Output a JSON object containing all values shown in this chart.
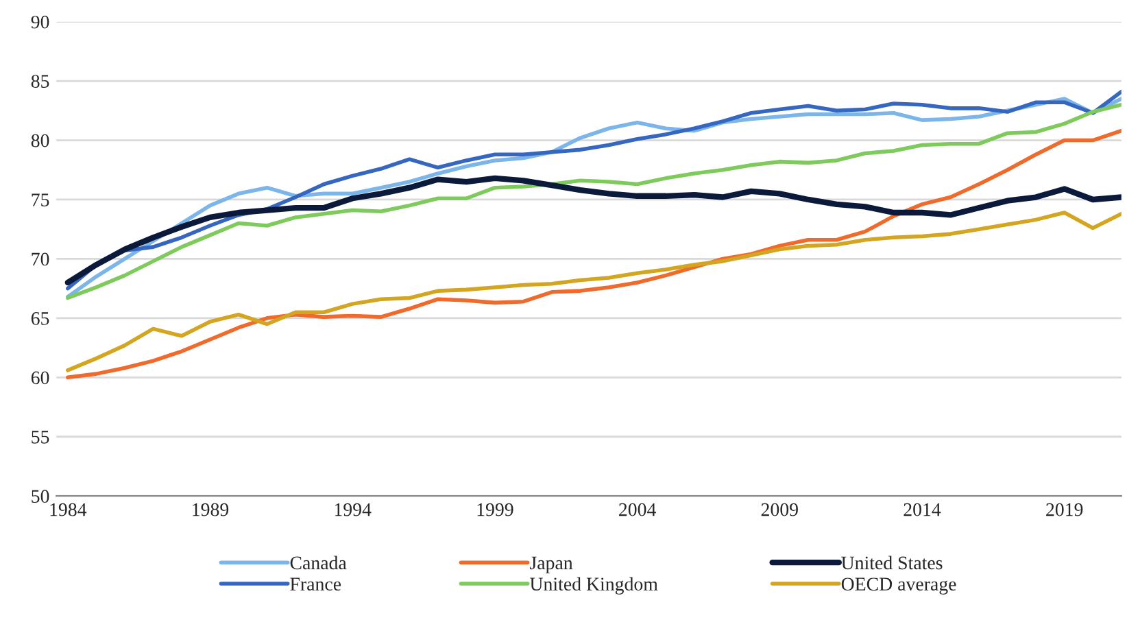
{
  "chart_data": {
    "type": "line",
    "x": [
      1984,
      1985,
      1986,
      1987,
      1988,
      1989,
      1990,
      1991,
      1992,
      1993,
      1994,
      1995,
      1996,
      1997,
      1998,
      1999,
      2000,
      2001,
      2002,
      2003,
      2004,
      2005,
      2006,
      2007,
      2008,
      2009,
      2010,
      2011,
      2012,
      2013,
      2014,
      2015,
      2016,
      2017,
      2018,
      2019,
      2020,
      2021
    ],
    "series": [
      {
        "name": "Canada",
        "color": "#7cb5ea",
        "values": [
          66.8,
          68.5,
          70,
          71.5,
          73,
          74.5,
          75.5,
          76,
          75.3,
          75.5,
          75.5,
          76,
          76.5,
          77.2,
          77.8,
          78.3,
          78.5,
          79,
          80.2,
          81,
          81.5,
          81,
          80.8,
          81.5,
          81.8,
          82,
          82.2,
          82.2,
          82.2,
          82.3,
          81.7,
          81.8,
          82,
          82.5,
          83,
          83.5,
          82.3,
          83.5
        ]
      },
      {
        "name": "France",
        "color": "#3566c0",
        "values": [
          67.5,
          69.5,
          70.7,
          71,
          71.8,
          72.8,
          73.7,
          74.2,
          75.2,
          76.3,
          77,
          77.6,
          78.4,
          77.7,
          78.3,
          78.8,
          78.8,
          79,
          79.2,
          79.6,
          80.1,
          80.5,
          81,
          81.6,
          82.3,
          82.6,
          82.9,
          82.5,
          82.6,
          83.1,
          83,
          82.7,
          82.7,
          82.4,
          83.2,
          83.2,
          82.3,
          84.1
        ]
      },
      {
        "name": "Japan",
        "color": "#f06a2b",
        "values": [
          60,
          60.3,
          60.8,
          61.4,
          62.2,
          63.2,
          64.2,
          65,
          65.3,
          65.1,
          65.2,
          65.1,
          65.8,
          66.6,
          66.5,
          66.3,
          66.4,
          67.2,
          67.3,
          67.6,
          68,
          68.6,
          69.3,
          70,
          70.4,
          71.1,
          71.6,
          71.6,
          72.3,
          73.6,
          74.6,
          75.2,
          76.3,
          77.5,
          78.8,
          80,
          80,
          80.8
        ]
      },
      {
        "name": "United Kingdom",
        "color": "#7fca5c",
        "values": [
          66.7,
          67.6,
          68.6,
          69.8,
          71,
          72,
          73,
          72.8,
          73.5,
          73.8,
          74.1,
          74,
          74.5,
          75.1,
          75.1,
          76,
          76.1,
          76.3,
          76.6,
          76.5,
          76.3,
          76.8,
          77.2,
          77.5,
          77.9,
          78.2,
          78.1,
          78.3,
          78.9,
          79.1,
          79.6,
          79.7,
          79.7,
          80.6,
          80.7,
          81.4,
          82.4,
          83
        ]
      },
      {
        "name": "United States",
        "color": "#0b1a3a",
        "values": [
          68,
          69.5,
          70.8,
          71.8,
          72.7,
          73.5,
          73.9,
          74.1,
          74.3,
          74.3,
          75.1,
          75.5,
          76,
          76.7,
          76.5,
          76.8,
          76.6,
          76.2,
          75.8,
          75.5,
          75.3,
          75.3,
          75.4,
          75.2,
          75.7,
          75.5,
          75,
          74.6,
          74.4,
          73.9,
          73.9,
          73.7,
          74.3,
          74.9,
          75.2,
          75.9,
          75,
          75.2
        ]
      },
      {
        "name": "OECD average",
        "color": "#d4a520",
        "values": [
          60.6,
          61.6,
          62.7,
          64.1,
          63.5,
          64.7,
          65.3,
          64.5,
          65.5,
          65.5,
          66.2,
          66.6,
          66.7,
          67.3,
          67.4,
          67.6,
          67.8,
          67.9,
          68.2,
          68.4,
          68.8,
          69.1,
          69.5,
          69.8,
          70.3,
          70.8,
          71.1,
          71.2,
          71.6,
          71.8,
          71.9,
          72.1,
          72.5,
          72.9,
          73.3,
          73.9,
          72.6,
          73.8
        ]
      }
    ],
    "xlim": [
      1983.6,
      2021
    ],
    "xticks": [
      1984,
      1989,
      1994,
      1999,
      2004,
      2009,
      2014,
      2019
    ],
    "ylim": [
      50,
      90
    ],
    "yticks": [
      50,
      55,
      60,
      65,
      70,
      75,
      80,
      85,
      90
    ],
    "grid": "y",
    "legend": "bottom",
    "marker": "none",
    "line_style": "solid"
  }
}
